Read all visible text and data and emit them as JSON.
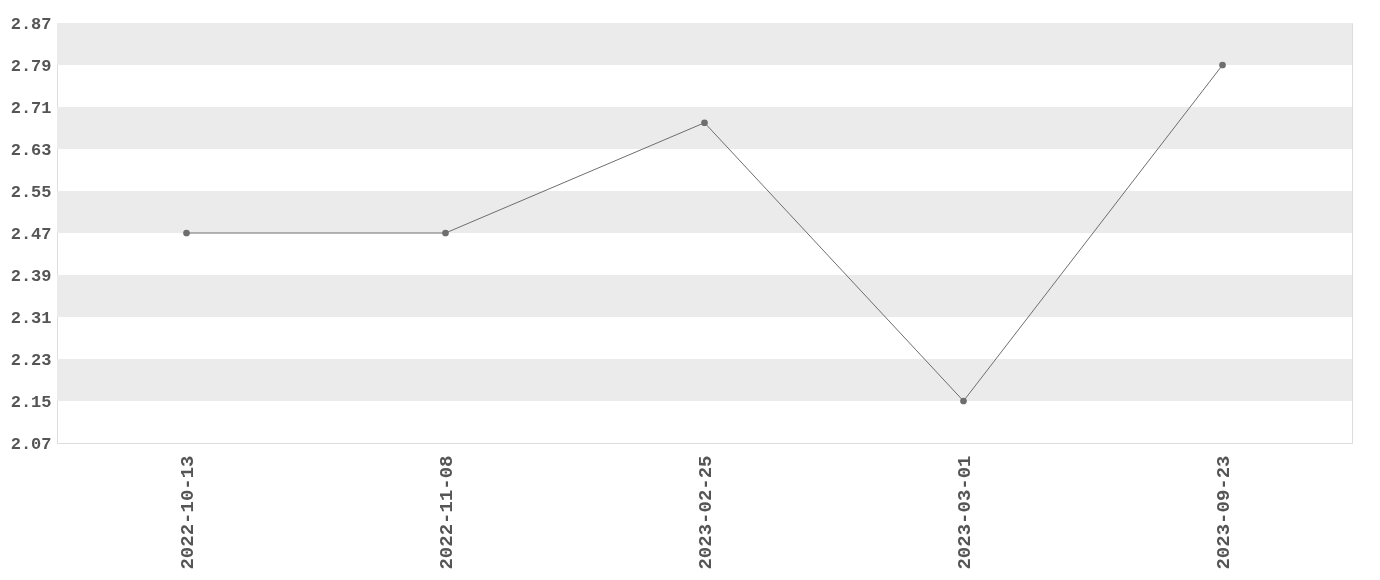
{
  "chart_data": {
    "type": "line",
    "categories": [
      "2022-10-13",
      "2022-11-08",
      "2023-02-25",
      "2023-03-01",
      "2023-09-23"
    ],
    "series": [
      {
        "color": "#6e6e6e",
        "values": [
          2.47,
          2.47,
          2.68,
          2.15,
          2.79
        ]
      }
    ],
    "ylim": [
      2.07,
      2.87
    ],
    "yticks": [
      2.07,
      2.15,
      2.23,
      2.31,
      2.39,
      2.47,
      2.55,
      2.63,
      2.71,
      2.79,
      2.87
    ],
    "bands": [
      {
        "axis": "y",
        "from": 2.15,
        "to": 2.23,
        "color": "#ebebeb"
      },
      {
        "axis": "y",
        "from": 2.31,
        "to": 2.39,
        "color": "#ebebeb"
      },
      {
        "axis": "y",
        "from": 2.47,
        "to": 2.55,
        "color": "#ebebeb"
      },
      {
        "axis": "y",
        "from": 2.63,
        "to": 2.71,
        "color": "#ebebeb"
      },
      {
        "axis": "y",
        "from": 2.79,
        "to": 2.87,
        "color": "#ebebeb"
      }
    ],
    "marker": "circle",
    "line_style": "solid",
    "legend": false
  }
}
